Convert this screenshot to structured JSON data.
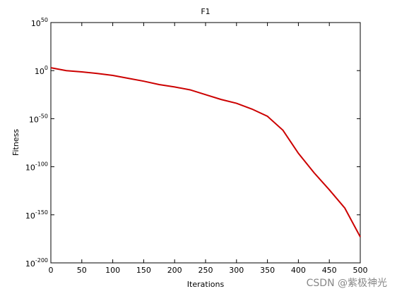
{
  "chart_data": {
    "type": "line",
    "title": "F1",
    "xlabel": "Iterations",
    "ylabel": "Fitness",
    "x": [
      0,
      25,
      50,
      75,
      100,
      125,
      150,
      175,
      200,
      225,
      250,
      275,
      300,
      325,
      350,
      375,
      400,
      425,
      450,
      475,
      500
    ],
    "series": [
      {
        "color": "#cc0000",
        "values": [
          1000.0,
          1,
          0.05,
          0.001,
          1e-05,
          1e-08,
          1e-11,
          3e-15,
          1e-17,
          1e-20,
          1e-25,
          1e-30,
          1e-34,
          1e-40,
          3e-48,
          1e-62,
          1e-86,
          1e-106,
          1e-124,
          1e-143,
          1e-173
        ]
      }
    ],
    "xlim": [
      0,
      500
    ],
    "xticks": [
      0,
      50,
      100,
      150,
      200,
      250,
      300,
      350,
      400,
      450,
      500
    ],
    "ylim": [
      1e-200,
      1e+50
    ],
    "log_y": true,
    "yticks": [
      {
        "value": 1e-200,
        "label": "10^-200"
      },
      {
        "value": 1e-150,
        "label": "10^-150"
      },
      {
        "value": 1e-100,
        "label": "10^-100"
      },
      {
        "value": 1e-50,
        "label": "10^-50"
      },
      {
        "value": 1,
        "label": "10^0"
      },
      {
        "value": 1e+50,
        "label": "10^50"
      }
    ],
    "grid": false,
    "watermark": "CSDN @紫极神光"
  }
}
